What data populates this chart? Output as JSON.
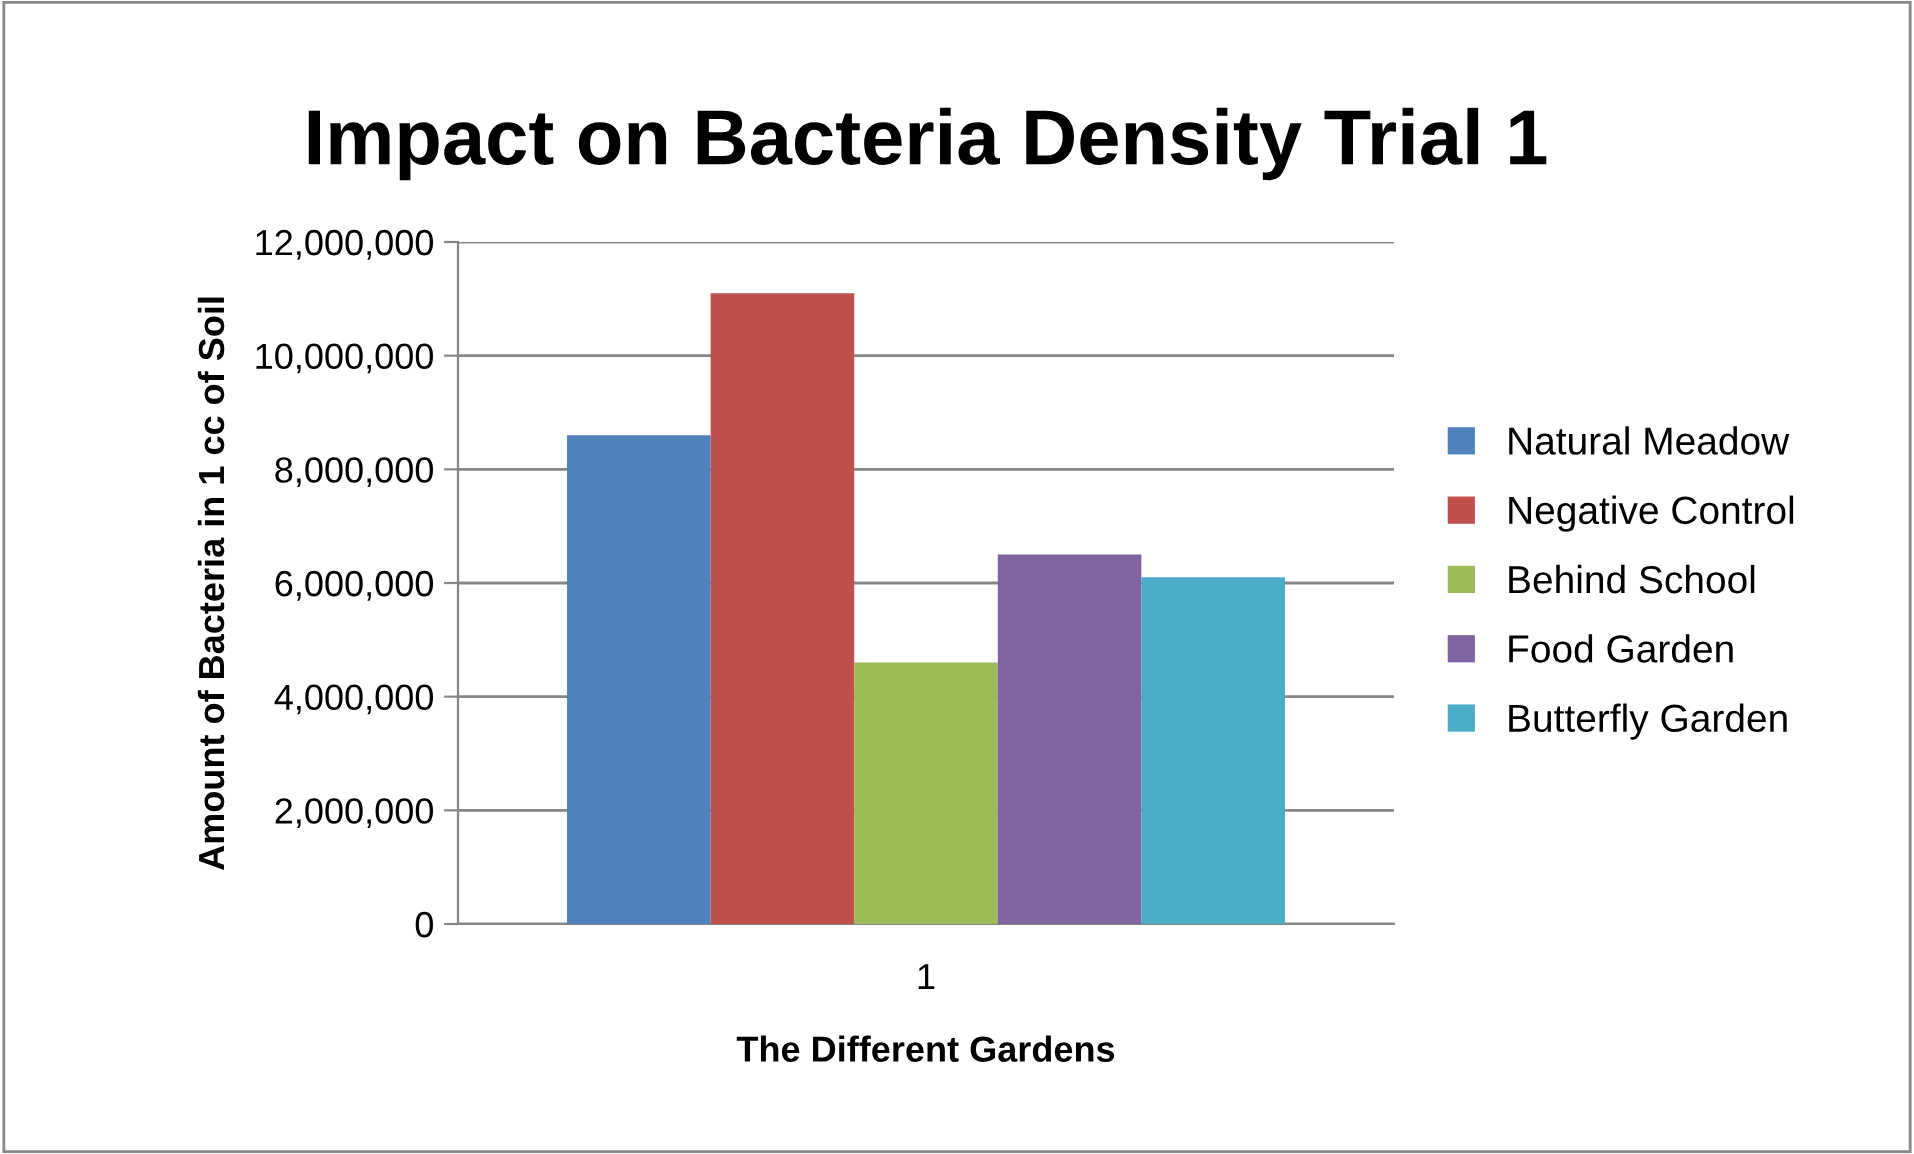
{
  "chart_data": {
    "type": "bar",
    "title": "Impact on Bacteria Density Trial 1",
    "xlabel": "The Different Gardens",
    "ylabel": "Amount of Bacteria in 1 cc of Soil",
    "categories": [
      "1"
    ],
    "series": [
      {
        "name": "Natural Meadow",
        "color": "#4f81bd",
        "values": [
          8600000
        ]
      },
      {
        "name": "Negative Control",
        "color": "#c0504d",
        "values": [
          11100000
        ]
      },
      {
        "name": "Behind School",
        "color": "#9bbb59",
        "values": [
          4600000
        ]
      },
      {
        "name": "Food Garden",
        "color": "#8064a2",
        "values": [
          6500000
        ]
      },
      {
        "name": "Butterfly Garden",
        "color": "#4bacc6",
        "values": [
          6100000
        ]
      }
    ],
    "ylim": [
      0,
      12000000
    ],
    "yticks": [
      {
        "value": 0,
        "label": "0"
      },
      {
        "value": 2000000,
        "label": "2,000,000"
      },
      {
        "value": 4000000,
        "label": "4,000,000"
      },
      {
        "value": 6000000,
        "label": "6,000,000"
      },
      {
        "value": 8000000,
        "label": "8,000,000"
      },
      {
        "value": 10000000,
        "label": "10,000,000"
      },
      {
        "value": 12000000,
        "label": "12,000,000"
      }
    ],
    "grid": "y",
    "legend": "right"
  }
}
